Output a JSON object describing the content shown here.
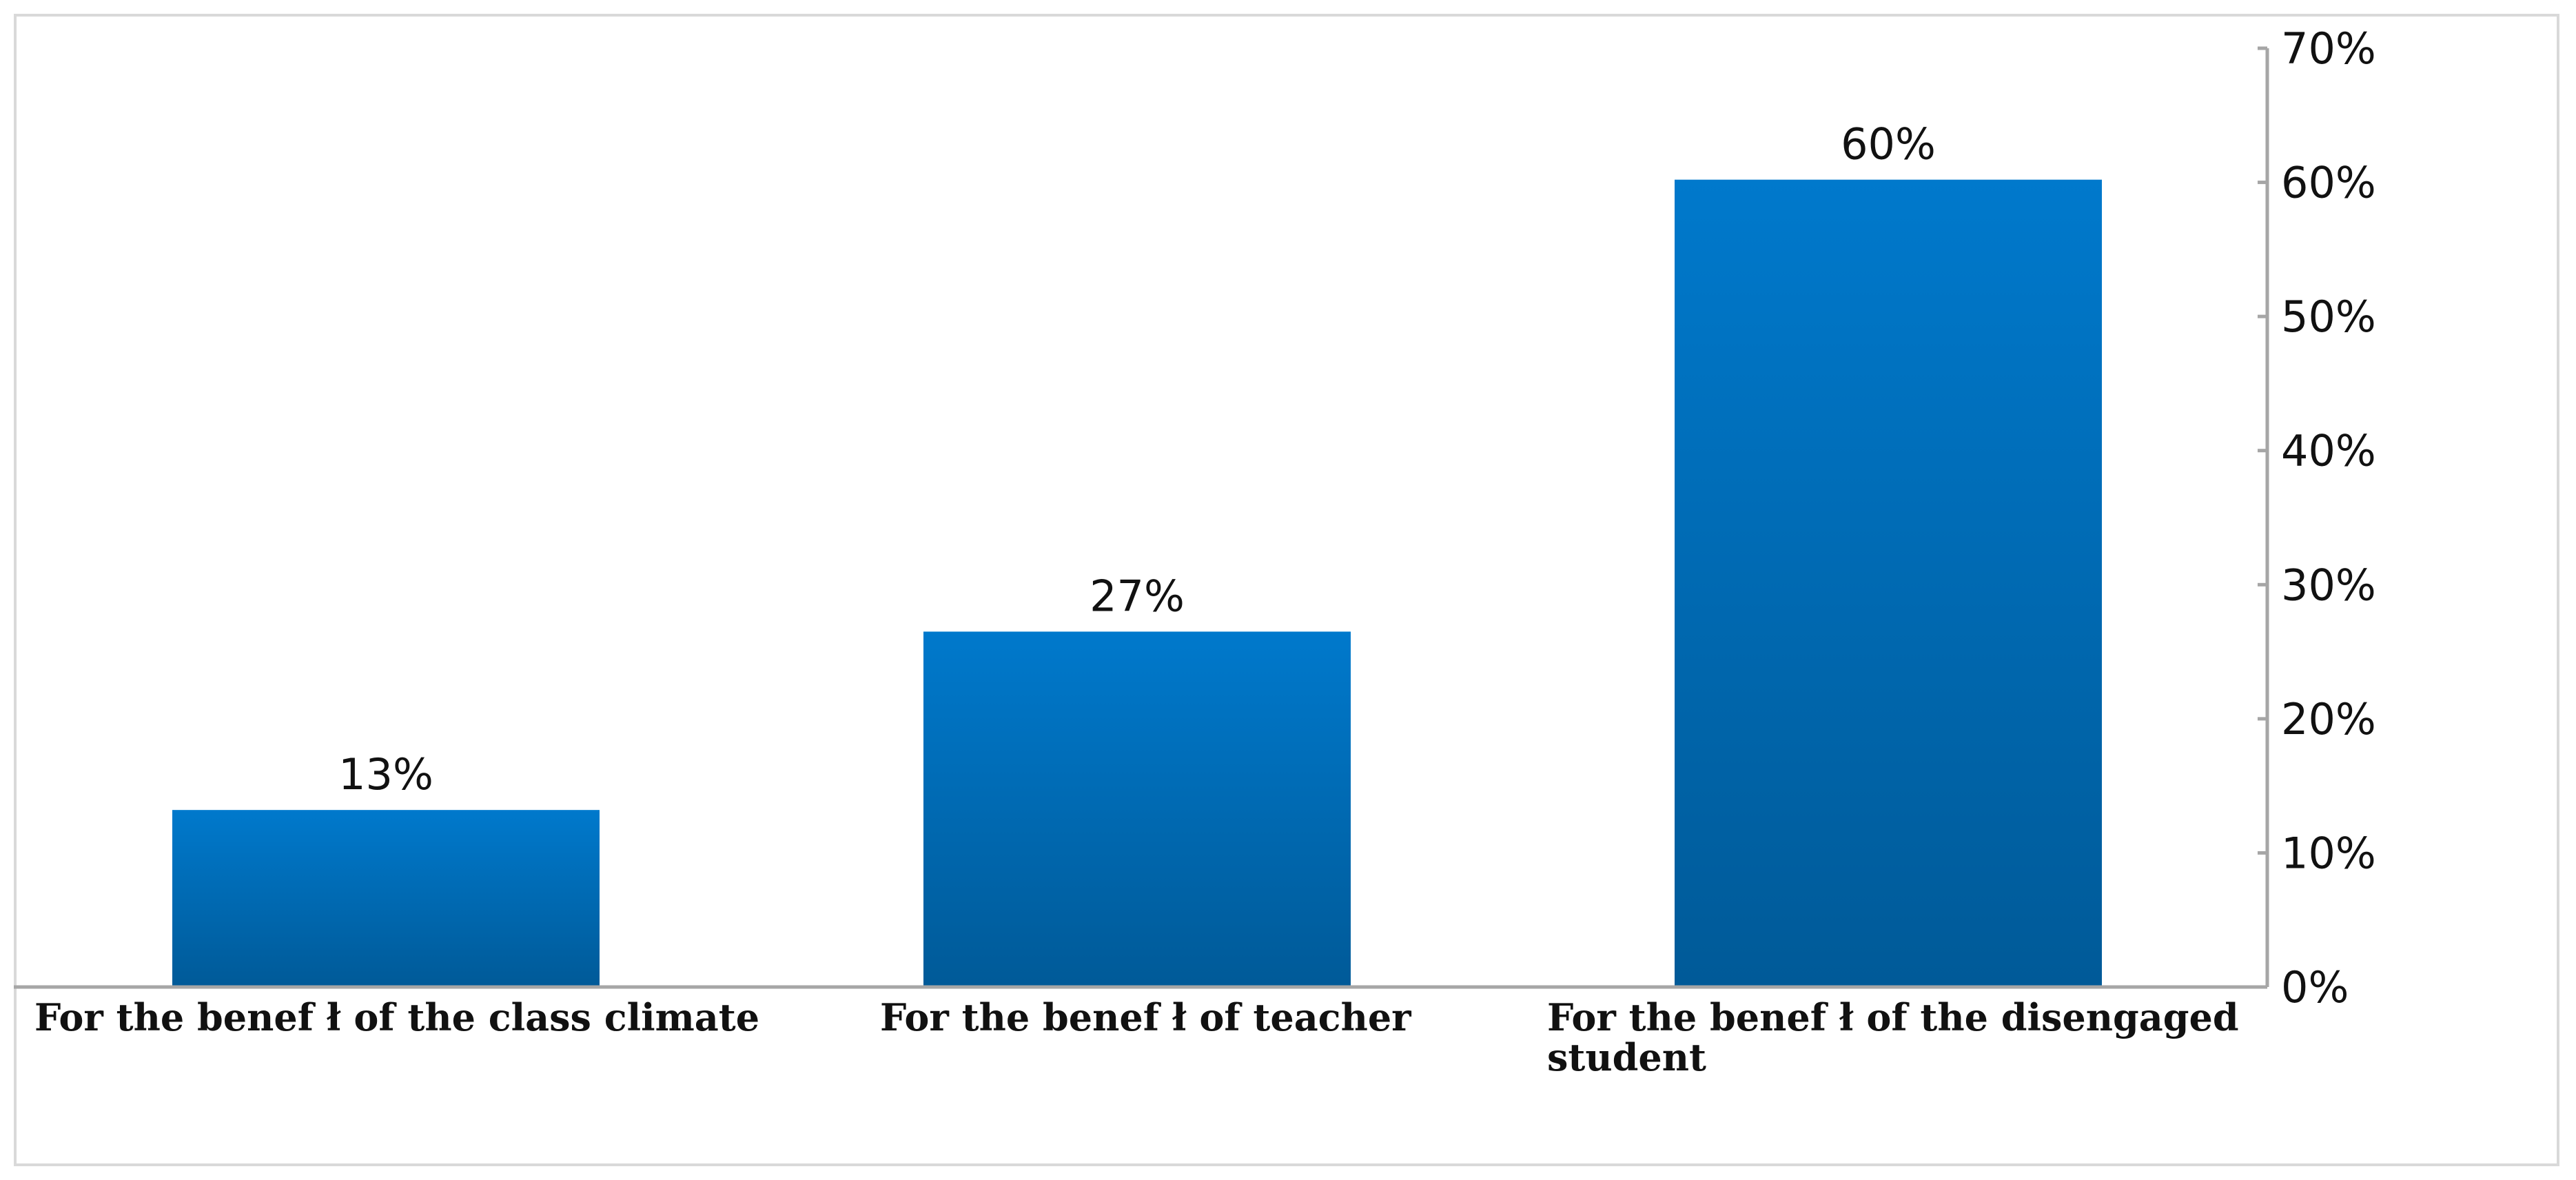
{
  "chart_data": {
    "type": "bar",
    "categories": [
      [
        "For the benef ł of the class climate"
      ],
      [
        "For the benef ł of teacher"
      ],
      [
        "For the benef ł of the disengaged",
        "student"
      ]
    ],
    "values": [
      13.2,
      26.5,
      60.2
    ],
    "data_labels": [
      "13%",
      "27%",
      "60%"
    ],
    "title": "",
    "xlabel": "",
    "ylabel": "",
    "ylim": [
      0,
      70
    ],
    "y_ticks": [
      0,
      10,
      20,
      30,
      40,
      50,
      60,
      70
    ],
    "y_tick_labels": [
      "0%",
      "10%",
      "20%",
      "30%",
      "40%",
      "50%",
      "60%",
      "70%"
    ],
    "y_axis_side": "right",
    "grid": false,
    "legend": "none",
    "colors": {
      "bar_top": "#0079CC",
      "bar_bottom": "#005A98",
      "axis": "#A6A6A6",
      "frame": "#D9D9D9"
    }
  }
}
